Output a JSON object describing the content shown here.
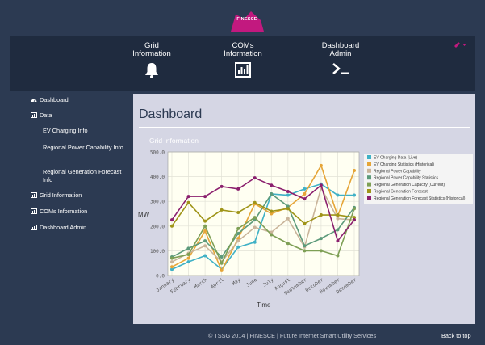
{
  "brand": {
    "name": "FINESCE",
    "color": "#c2197f"
  },
  "topnav": {
    "items": [
      {
        "label_line1": "Grid",
        "label_line2": "Information",
        "icon": "bell-icon"
      },
      {
        "label_line1": "COMs",
        "label_line2": "Information",
        "icon": "bar-chart-icon"
      },
      {
        "label_line1": "Dashboard",
        "label_line2": "Admin",
        "icon": "terminal-icon"
      }
    ],
    "toggle_icon": "wrench-dropdown-icon"
  },
  "sidebar": {
    "dashboard": "Dashboard",
    "data": "Data",
    "data_children": [
      "EV Charging Info",
      "Regional Power Capability Info",
      "Regional Generation Forecast Info"
    ],
    "grid_information": "Grid Information",
    "coms_information": "COMs Information",
    "dashboard_admin": "Dashboard Admin"
  },
  "main": {
    "title": "Dashboard",
    "panel_title": "Grid Information"
  },
  "footer": {
    "copyright": "© TSSG 2014 | FINESCE | Future Internet Smart Utility Services",
    "back_to_top": "Back to top"
  },
  "chart_data": {
    "type": "line",
    "title": "Grid Information",
    "xlabel": "Time",
    "ylabel": "MW",
    "ylim": [
      0,
      500
    ],
    "yticks": [
      "0.0",
      "100.0",
      "200.0",
      "300.0",
      "400.0",
      "500.0"
    ],
    "categories": [
      "January",
      "February",
      "March",
      "April",
      "May",
      "June",
      "July",
      "August",
      "September",
      "October",
      "November",
      "December"
    ],
    "legend_position": "right",
    "series": [
      {
        "name": "EV Charging Data (Live)",
        "color": "#3fb1c6",
        "values": [
          25,
          55,
          80,
          25,
          115,
          135,
          330,
          325,
          350,
          370,
          325,
          325
        ]
      },
      {
        "name": "EV Charging Statistics (Historical)",
        "color": "#e6a537",
        "values": [
          35,
          70,
          180,
          20,
          150,
          290,
          250,
          275,
          330,
          445,
          240,
          425
        ]
      },
      {
        "name": "Regional Power Capability",
        "color": "#c9b49a",
        "values": [
          55,
          90,
          120,
          55,
          140,
          195,
          175,
          230,
          115,
          355,
          230,
          225
        ]
      },
      {
        "name": "Regional Power Capability Statistics",
        "color": "#5c9a7a",
        "values": [
          75,
          110,
          140,
          75,
          170,
          225,
          330,
          280,
          120,
          150,
          185,
          275
        ]
      },
      {
        "name": "Regional Generation Capacity (Current)",
        "color": "#7e9f55",
        "values": [
          70,
          85,
          200,
          50,
          190,
          235,
          165,
          130,
          100,
          100,
          80,
          270
        ]
      },
      {
        "name": "Regional Generation Forecast",
        "color": "#9f9418",
        "values": [
          200,
          295,
          220,
          265,
          255,
          295,
          260,
          270,
          210,
          245,
          245,
          235
        ]
      },
      {
        "name": "Regional Generation Forecast Statistics (Historical)",
        "color": "#8b1f6e",
        "values": [
          225,
          320,
          320,
          360,
          350,
          395,
          365,
          340,
          310,
          365,
          140,
          225
        ]
      }
    ]
  }
}
